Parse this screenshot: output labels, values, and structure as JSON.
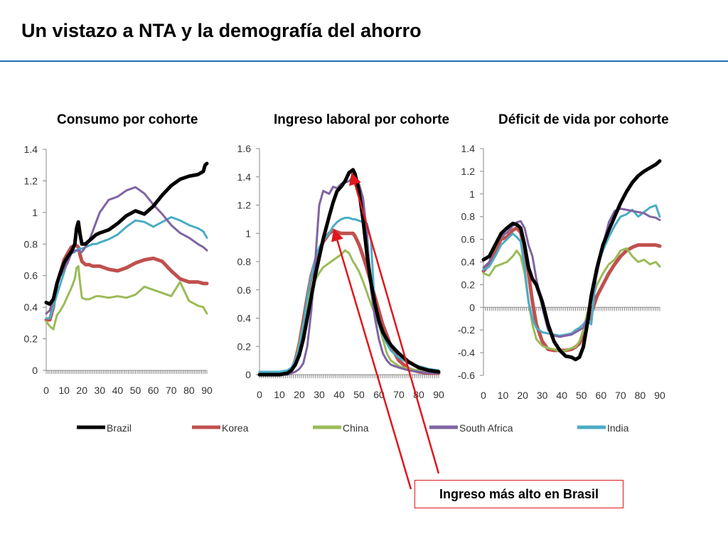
{
  "slide": {
    "title": "Un vistazo a NTA y la demografía del ahorro"
  },
  "annotation": {
    "text": "Ingreso más alto en Brasil"
  },
  "colors": {
    "Brazil": "#000000",
    "Korea": "#c0504d",
    "China": "#9bbb59",
    "South Africa": "#8064a2",
    "India": "#4bacc6",
    "arrow": "#e0161b",
    "title_rule": "#1f6fb2"
  },
  "legend": [
    {
      "name": "Brazil"
    },
    {
      "name": "Korea"
    },
    {
      "name": "China"
    },
    {
      "name": "South Africa"
    },
    {
      "name": "India"
    }
  ],
  "chart_data": [
    {
      "type": "line",
      "title": "Consumo por cohorte",
      "xlabel": "",
      "ylabel": "",
      "x": [
        0,
        2,
        4,
        6,
        8,
        10,
        12,
        14,
        16,
        17,
        18,
        19,
        20,
        22,
        24,
        26,
        28,
        30,
        35,
        40,
        45,
        50,
        55,
        60,
        65,
        70,
        75,
        80,
        85,
        88,
        89,
        90
      ],
      "xticks": [
        0,
        10,
        20,
        30,
        40,
        50,
        60,
        70,
        80,
        90
      ],
      "yticks": [
        "0",
        "0.2",
        "0.4",
        "0.6",
        "0.8",
        "1",
        "1.2",
        "1.4"
      ],
      "xlim": [
        0,
        90
      ],
      "ylim": [
        0,
        1.4
      ],
      "series": [
        {
          "name": "Brazil",
          "values": [
            0.43,
            0.42,
            0.45,
            0.55,
            0.62,
            0.68,
            0.72,
            0.75,
            0.8,
            0.9,
            0.94,
            0.86,
            0.8,
            0.8,
            0.82,
            0.84,
            0.86,
            0.87,
            0.89,
            0.93,
            0.98,
            1.01,
            0.99,
            1.04,
            1.11,
            1.17,
            1.21,
            1.23,
            1.24,
            1.26,
            1.3,
            1.31
          ]
        },
        {
          "name": "Korea",
          "values": [
            0.32,
            0.32,
            0.4,
            0.55,
            0.62,
            0.7,
            0.74,
            0.78,
            0.79,
            0.79,
            0.78,
            0.73,
            0.69,
            0.67,
            0.67,
            0.66,
            0.66,
            0.66,
            0.64,
            0.63,
            0.65,
            0.68,
            0.7,
            0.71,
            0.69,
            0.63,
            0.58,
            0.56,
            0.56,
            0.55,
            0.55,
            0.55
          ]
        },
        {
          "name": "China",
          "values": [
            0.31,
            0.28,
            0.26,
            0.35,
            0.38,
            0.42,
            0.47,
            0.52,
            0.58,
            0.65,
            0.66,
            0.55,
            0.46,
            0.45,
            0.45,
            0.46,
            0.47,
            0.47,
            0.46,
            0.47,
            0.46,
            0.48,
            0.53,
            0.51,
            0.49,
            0.47,
            0.56,
            0.44,
            0.41,
            0.4,
            0.38,
            0.36
          ]
        },
        {
          "name": "South Africa",
          "values": [
            0.36,
            0.38,
            0.46,
            0.56,
            0.6,
            0.64,
            0.68,
            0.74,
            0.76,
            0.76,
            0.76,
            0.75,
            0.75,
            0.78,
            0.82,
            0.88,
            0.94,
            1.0,
            1.08,
            1.1,
            1.14,
            1.16,
            1.12,
            1.05,
            0.99,
            0.92,
            0.87,
            0.84,
            0.8,
            0.78,
            0.77,
            0.76
          ]
        },
        {
          "name": "India",
          "values": [
            0.33,
            0.33,
            0.4,
            0.48,
            0.55,
            0.62,
            0.7,
            0.74,
            0.75,
            0.76,
            0.77,
            0.77,
            0.77,
            0.78,
            0.79,
            0.8,
            0.8,
            0.81,
            0.83,
            0.86,
            0.91,
            0.95,
            0.94,
            0.91,
            0.94,
            0.97,
            0.95,
            0.92,
            0.9,
            0.88,
            0.86,
            0.84
          ]
        }
      ]
    },
    {
      "type": "line",
      "title": "Ingreso laboral por cohorte",
      "xlabel": "",
      "ylabel": "",
      "x": [
        0,
        5,
        10,
        14,
        16,
        18,
        20,
        22,
        24,
        26,
        28,
        30,
        32,
        35,
        37,
        39,
        41,
        43,
        45,
        47,
        48,
        50,
        52,
        54,
        56,
        58,
        60,
        62,
        64,
        66,
        70,
        75,
        80,
        85,
        90
      ],
      "xticks": [
        0,
        10,
        20,
        30,
        40,
        50,
        60,
        70,
        80,
        90
      ],
      "yticks": [
        "0",
        "0.2",
        "0.4",
        "0.6",
        "0.8",
        "1",
        "1.2",
        "1.4",
        "1.6"
      ],
      "xlim": [
        0,
        90
      ],
      "ylim": [
        0,
        1.6
      ],
      "series": [
        {
          "name": "Brazil",
          "values": [
            0,
            0,
            0,
            0.01,
            0.03,
            0.07,
            0.14,
            0.25,
            0.4,
            0.55,
            0.7,
            0.83,
            0.96,
            1.12,
            1.22,
            1.3,
            1.33,
            1.37,
            1.43,
            1.45,
            1.42,
            1.3,
            1.1,
            0.85,
            0.65,
            0.5,
            0.38,
            0.3,
            0.25,
            0.21,
            0.15,
            0.09,
            0.05,
            0.03,
            0.02
          ]
        },
        {
          "name": "Korea",
          "values": [
            0,
            0,
            0,
            0.01,
            0.03,
            0.1,
            0.22,
            0.38,
            0.55,
            0.7,
            0.8,
            0.88,
            0.94,
            1.0,
            1.02,
            1.01,
            1.0,
            1.0,
            1.0,
            1.0,
            0.98,
            0.92,
            0.84,
            0.75,
            0.65,
            0.55,
            0.45,
            0.35,
            0.28,
            0.2,
            0.1,
            0.04,
            0.02,
            0.01,
            0.01
          ]
        },
        {
          "name": "China",
          "values": [
            0,
            0,
            0,
            0.01,
            0.04,
            0.1,
            0.22,
            0.36,
            0.5,
            0.6,
            0.67,
            0.72,
            0.76,
            0.79,
            0.81,
            0.83,
            0.85,
            0.88,
            0.86,
            0.8,
            0.78,
            0.73,
            0.66,
            0.58,
            0.5,
            0.43,
            0.35,
            0.25,
            0.15,
            0.1,
            0.06,
            0.04,
            0.03,
            0.02,
            0.02
          ]
        },
        {
          "name": "South Africa",
          "values": [
            0,
            0,
            0,
            0,
            0.01,
            0.02,
            0.04,
            0.08,
            0.2,
            0.45,
            0.8,
            1.2,
            1.3,
            1.28,
            1.33,
            1.32,
            1.35,
            1.36,
            1.37,
            1.4,
            1.38,
            1.35,
            1.25,
            1.0,
            0.6,
            0.4,
            0.25,
            0.15,
            0.1,
            0.07,
            0.05,
            0.03,
            0.02,
            0.01,
            0.01
          ]
        },
        {
          "name": "India",
          "values": [
            0.02,
            0.02,
            0.02,
            0.03,
            0.05,
            0.1,
            0.2,
            0.35,
            0.55,
            0.7,
            0.82,
            0.9,
            0.95,
            1.0,
            1.05,
            1.08,
            1.1,
            1.11,
            1.11,
            1.1,
            1.1,
            1.09,
            1.08,
            1.07,
            0.95,
            0.45,
            0.35,
            0.28,
            0.22,
            0.17,
            0.12,
            0.08,
            0.06,
            0.04,
            0.03
          ]
        }
      ]
    },
    {
      "type": "line",
      "title": "Déficit de vida por cohorte",
      "xlabel": "",
      "ylabel": "",
      "x": [
        0,
        3,
        6,
        9,
        12,
        15,
        17,
        19,
        21,
        23,
        25,
        27,
        30,
        33,
        36,
        39,
        42,
        45,
        47,
        49,
        51,
        53,
        55,
        58,
        61,
        64,
        67,
        70,
        73,
        76,
        79,
        82,
        85,
        88,
        90
      ],
      "xticks": [
        0,
        10,
        20,
        30,
        40,
        50,
        60,
        70,
        80,
        90
      ],
      "yticks": [
        "-0.6",
        "-0.4",
        "-0.2",
        "0",
        "0.2",
        "0.4",
        "0.6",
        "0.8",
        "1",
        "1.2",
        "1.4"
      ],
      "xlim": [
        0,
        90
      ],
      "ylim": [
        -0.6,
        1.4
      ],
      "series": [
        {
          "name": "Brazil",
          "values": [
            0.42,
            0.45,
            0.55,
            0.65,
            0.7,
            0.74,
            0.73,
            0.7,
            0.55,
            0.35,
            0.25,
            0.2,
            0.05,
            -0.15,
            -0.3,
            -0.38,
            -0.43,
            -0.44,
            -0.46,
            -0.44,
            -0.35,
            -0.15,
            0.1,
            0.35,
            0.55,
            0.68,
            0.8,
            0.92,
            1.02,
            1.1,
            1.16,
            1.2,
            1.23,
            1.26,
            1.29
          ]
        },
        {
          "name": "Korea",
          "values": [
            0.32,
            0.38,
            0.5,
            0.6,
            0.62,
            0.68,
            0.7,
            0.66,
            0.5,
            0.3,
            0.05,
            -0.15,
            -0.3,
            -0.37,
            -0.38,
            -0.38,
            -0.38,
            -0.37,
            -0.35,
            -0.32,
            -0.25,
            -0.15,
            -0.05,
            0.1,
            0.2,
            0.3,
            0.38,
            0.45,
            0.5,
            0.53,
            0.55,
            0.55,
            0.55,
            0.55,
            0.54
          ]
        },
        {
          "name": "China",
          "values": [
            0.3,
            0.28,
            0.36,
            0.38,
            0.4,
            0.45,
            0.5,
            0.45,
            0.3,
            0.05,
            -0.15,
            -0.28,
            -0.34,
            -0.36,
            -0.37,
            -0.39,
            -0.38,
            -0.36,
            -0.35,
            -0.3,
            -0.2,
            -0.05,
            0.05,
            0.2,
            0.3,
            0.38,
            0.42,
            0.5,
            0.52,
            0.45,
            0.4,
            0.42,
            0.38,
            0.4,
            0.36
          ]
        },
        {
          "name": "South Africa",
          "values": [
            0.35,
            0.4,
            0.55,
            0.62,
            0.66,
            0.72,
            0.75,
            0.76,
            0.7,
            0.55,
            0.45,
            0.25,
            0.0,
            -0.2,
            -0.25,
            -0.26,
            -0.25,
            -0.24,
            -0.22,
            -0.2,
            -0.18,
            -0.1,
            0.05,
            0.3,
            0.55,
            0.75,
            0.85,
            0.87,
            0.86,
            0.85,
            0.84,
            0.83,
            0.8,
            0.79,
            0.77
          ]
        },
        {
          "name": "India",
          "values": [
            0.33,
            0.36,
            0.45,
            0.55,
            0.6,
            0.65,
            0.62,
            0.58,
            0.35,
            0.05,
            -0.1,
            -0.18,
            -0.22,
            -0.23,
            -0.24,
            -0.25,
            -0.24,
            -0.23,
            -0.2,
            -0.18,
            -0.15,
            -0.1,
            -0.15,
            0.35,
            0.5,
            0.62,
            0.72,
            0.8,
            0.82,
            0.86,
            0.8,
            0.84,
            0.88,
            0.9,
            0.8
          ]
        }
      ]
    }
  ]
}
